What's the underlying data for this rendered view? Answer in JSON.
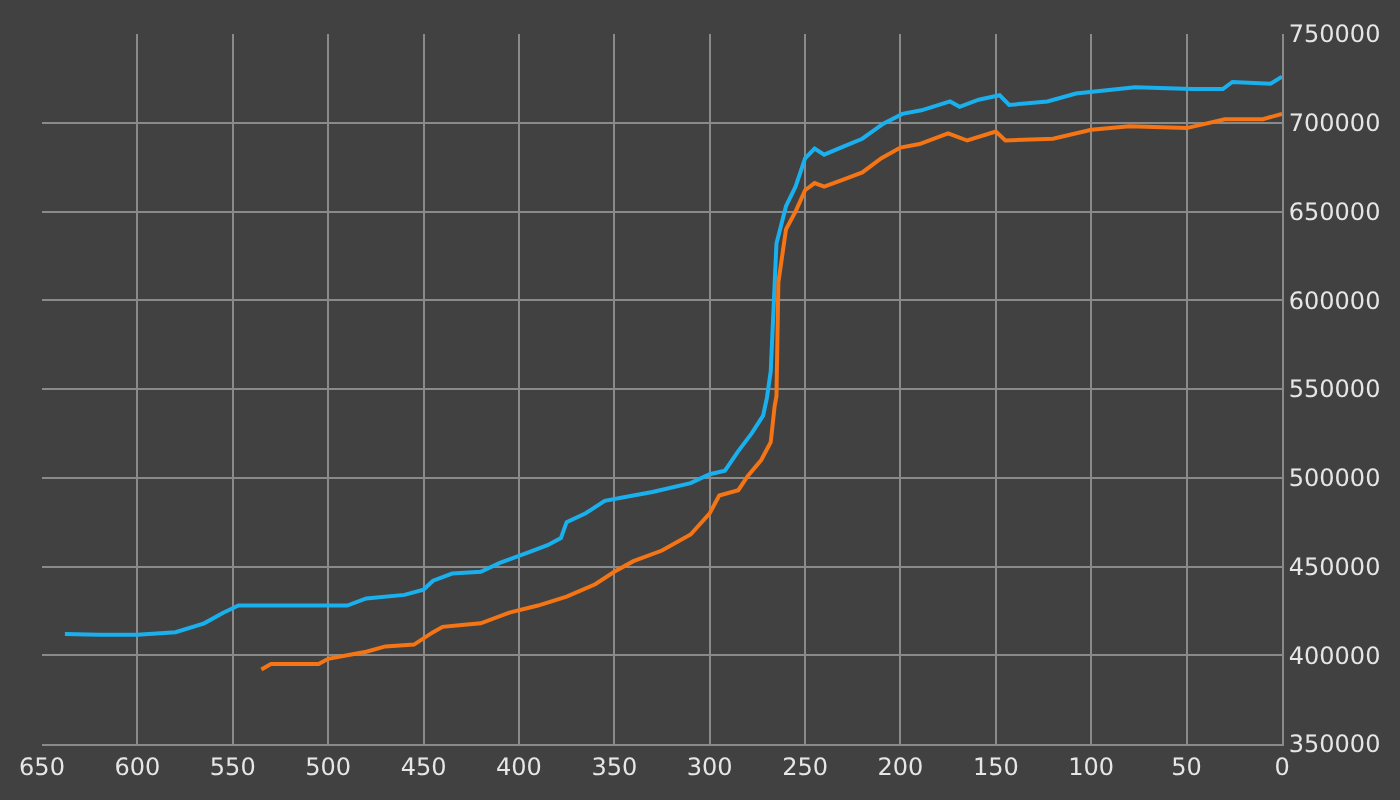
{
  "chart_data": {
    "type": "line",
    "xlim": [
      650,
      0
    ],
    "ylim": [
      350000,
      750000
    ],
    "xticks": [
      650,
      600,
      550,
      500,
      450,
      400,
      350,
      300,
      250,
      200,
      150,
      100,
      50,
      0
    ],
    "yticks": [
      350000,
      400000,
      450000,
      500000,
      550000,
      600000,
      650000,
      700000,
      750000
    ],
    "grid": true,
    "legend": false,
    "marker": "none",
    "line_style": "solid",
    "series": [
      {
        "color": "#1ab0ee",
        "x": [
          638,
          620,
          600,
          580,
          565,
          555,
          547,
          500,
          490,
          480,
          460,
          450,
          445,
          435,
          420,
          410,
          395,
          385,
          378,
          375,
          365,
          355,
          345,
          330,
          310,
          300,
          292,
          285,
          278,
          272,
          270,
          268,
          265,
          260,
          255,
          250,
          245,
          240,
          230,
          220,
          209,
          199,
          189,
          174,
          169,
          159,
          148,
          143,
          123,
          108,
          77,
          47,
          31,
          26,
          6,
          0
        ],
        "values": [
          412000,
          411500,
          411500,
          413000,
          418000,
          424000,
          428000,
          428000,
          428000,
          432000,
          434000,
          437000,
          442000,
          446000,
          447000,
          452000,
          458000,
          462000,
          466000,
          475000,
          480000,
          487000,
          489000,
          492000,
          497000,
          502000,
          504000,
          515000,
          525000,
          535000,
          545000,
          560000,
          632000,
          653000,
          664000,
          680000,
          685500,
          682000,
          686500,
          691000,
          699500,
          705000,
          707000,
          712000,
          709000,
          713000,
          715500,
          710000,
          712000,
          716500,
          720000,
          719000,
          719000,
          723000,
          722000,
          726000
        ]
      },
      {
        "color": "#f57414",
        "x": [
          535,
          530,
          505,
          500,
          490,
          480,
          470,
          455,
          445,
          440,
          430,
          420,
          405,
          390,
          375,
          360,
          350,
          340,
          325,
          310,
          300,
          295,
          285,
          280,
          273,
          268,
          266,
          265,
          264,
          260,
          255,
          250,
          245,
          240,
          230,
          220,
          210,
          200,
          190,
          175,
          165,
          150,
          145,
          120,
          100,
          80,
          50,
          30,
          10,
          0
        ],
        "values": [
          392000,
          395000,
          395000,
          398000,
          400000,
          402000,
          405000,
          406000,
          413000,
          416000,
          417000,
          418000,
          424000,
          428000,
          433000,
          440000,
          447000,
          453000,
          459000,
          468000,
          480000,
          490000,
          493000,
          501000,
          510000,
          520000,
          540000,
          546000,
          610000,
          640000,
          650000,
          662000,
          666000,
          664000,
          668000,
          672000,
          680000,
          686000,
          688000,
          694000,
          690000,
          695000,
          690000,
          691000,
          696000,
          698000,
          697000,
          702000,
          702000,
          705000
        ]
      }
    ]
  }
}
